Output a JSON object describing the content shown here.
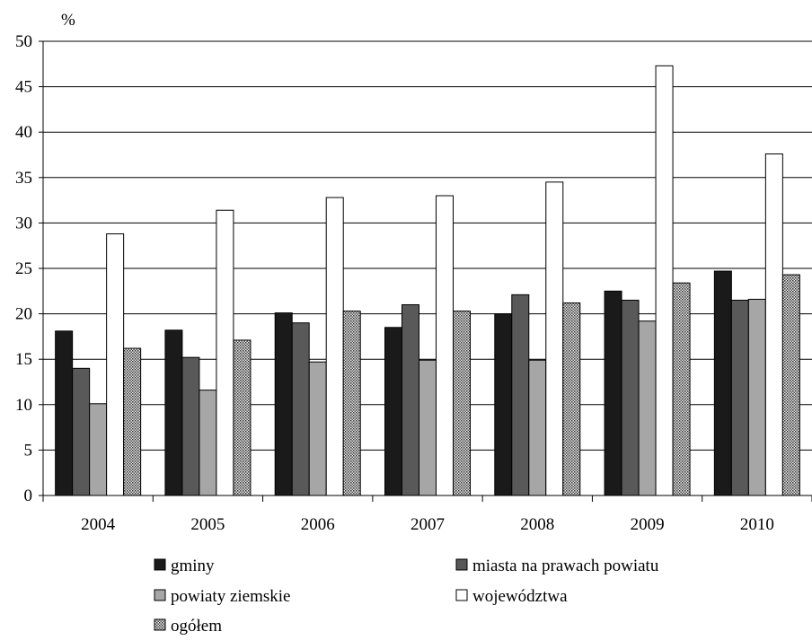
{
  "chart_data": {
    "type": "bar",
    "unit": "%",
    "ylim": [
      0,
      50
    ],
    "yticks": [
      "0",
      "5",
      "10",
      "15",
      "20",
      "25",
      "30",
      "35",
      "40",
      "45",
      "50"
    ],
    "grid": true,
    "legend_position": "bottom",
    "categories": [
      "2004",
      "2005",
      "2006",
      "2007",
      "2008",
      "2009",
      "2010"
    ],
    "series": [
      {
        "name": "gminy",
        "color": "#1a1a1a",
        "pattern": "solid",
        "values": [
          18.1,
          18.2,
          20.1,
          18.5,
          20.0,
          22.5,
          24.7
        ]
      },
      {
        "name": "miasta na prawach powiatu",
        "color": "#595959",
        "pattern": "solid",
        "values": [
          14.0,
          15.2,
          19.0,
          21.0,
          22.1,
          21.5,
          21.5
        ]
      },
      {
        "name": "powiaty ziemskie",
        "color": "#a6a6a6",
        "pattern": "solid",
        "values": [
          10.1,
          11.6,
          14.7,
          14.9,
          14.9,
          19.2,
          21.6
        ]
      },
      {
        "name": "województwa",
        "color": "#ffffff",
        "pattern": "solid",
        "values": [
          28.8,
          31.4,
          32.8,
          33.0,
          34.5,
          47.3,
          37.6
        ]
      },
      {
        "name": "ogółem",
        "color": "#8c8c8c",
        "pattern": "dotted",
        "values": [
          16.2,
          17.1,
          20.3,
          20.3,
          21.2,
          23.4,
          24.3
        ]
      }
    ]
  }
}
